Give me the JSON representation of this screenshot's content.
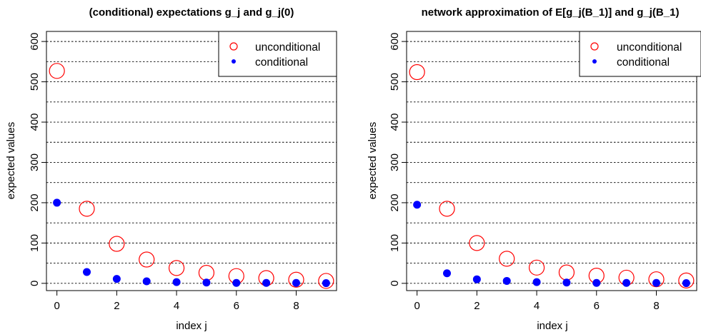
{
  "chart_data": [
    {
      "type": "scatter",
      "title": "(conditional) expectations g_j and g_j(0)",
      "xlabel": "index j",
      "ylabel": "expected values",
      "xlim": [
        -0.35,
        9.35
      ],
      "ylim": [
        -18,
        625
      ],
      "xticks": [
        0,
        2,
        4,
        6,
        8
      ],
      "yticks": [
        0,
        100,
        200,
        300,
        400,
        500,
        600
      ],
      "gridlines_y": [
        0,
        50,
        100,
        150,
        200,
        250,
        300,
        350,
        400,
        450,
        500,
        550,
        600
      ],
      "legend_position": "top-right",
      "x": [
        0,
        1,
        2,
        3,
        4,
        5,
        6,
        7,
        8,
        9
      ],
      "series": [
        {
          "name": "unconditional",
          "marker": "open-circle",
          "color": "#ff0000",
          "values": [
            527,
            185,
            98,
            59,
            38,
            26,
            18,
            13,
            9,
            6
          ]
        },
        {
          "name": "conditional",
          "marker": "filled-circle",
          "color": "#0000ff",
          "values": [
            200,
            28,
            11,
            5,
            3,
            2,
            1,
            1,
            1,
            0.5
          ]
        }
      ]
    },
    {
      "type": "scatter",
      "title": "network approximation of E[g_j(B_1)] and g_j(B_1)",
      "xlabel": "index j",
      "ylabel": "expected values",
      "xlim": [
        -0.35,
        9.35
      ],
      "ylim": [
        -18,
        625
      ],
      "xticks": [
        0,
        2,
        4,
        6,
        8
      ],
      "yticks": [
        0,
        100,
        200,
        300,
        400,
        500,
        600
      ],
      "gridlines_y": [
        0,
        50,
        100,
        150,
        200,
        250,
        300,
        350,
        400,
        450,
        500,
        550,
        600
      ],
      "legend_position": "top-right",
      "x": [
        0,
        1,
        2,
        3,
        4,
        5,
        6,
        7,
        8,
        9
      ],
      "series": [
        {
          "name": "unconditional",
          "marker": "open-circle",
          "color": "#ff0000",
          "values": [
            524,
            185,
            100,
            61,
            39,
            27,
            19,
            14,
            10,
            7
          ]
        },
        {
          "name": "conditional",
          "marker": "filled-circle",
          "color": "#0000ff",
          "values": [
            195,
            25,
            10,
            6,
            3,
            2,
            1,
            1,
            1,
            0.5
          ]
        }
      ]
    }
  ]
}
